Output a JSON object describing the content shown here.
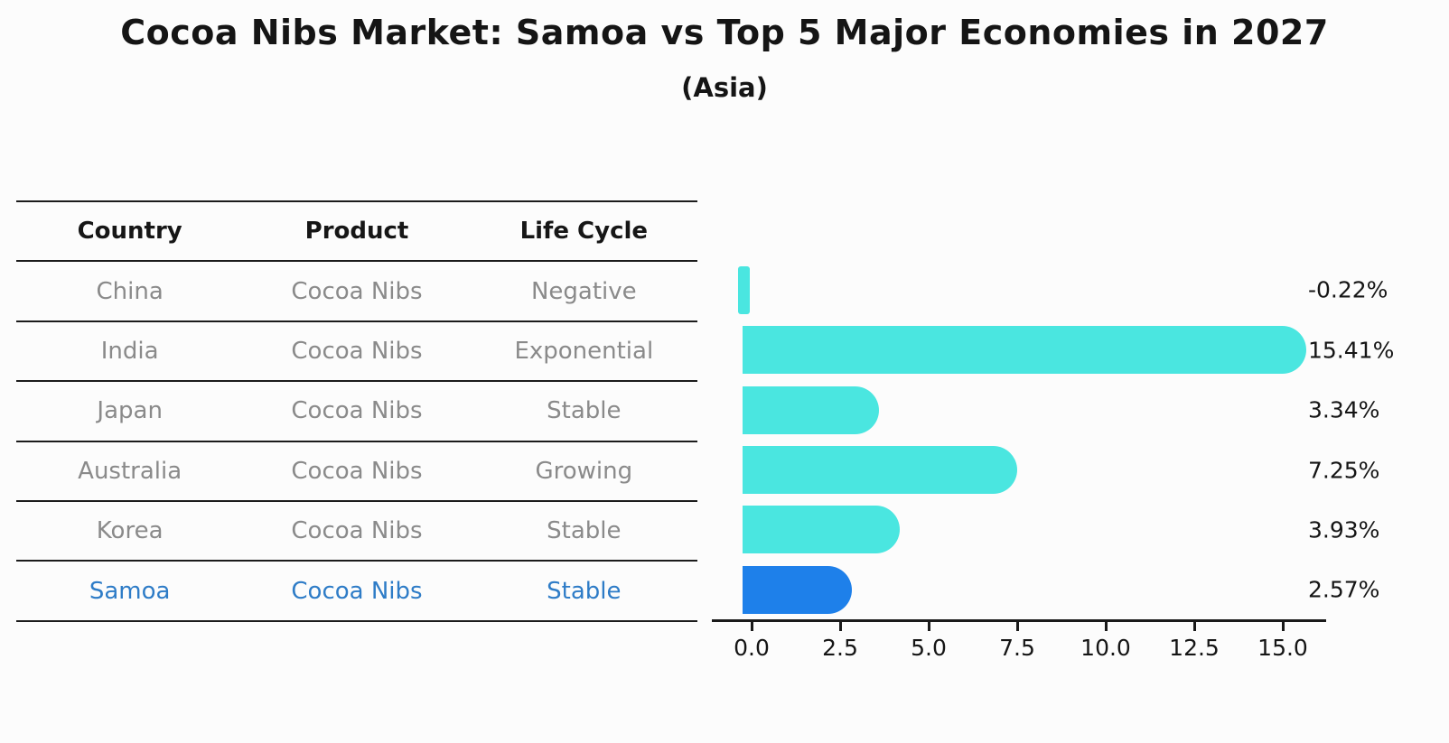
{
  "title": "Cocoa Nibs Market: Samoa vs Top 5 Major Economies in 2027",
  "subtitle": "(Asia)",
  "table": {
    "headers": [
      "Country",
      "Product",
      "Life Cycle"
    ],
    "rows": [
      {
        "country": "China",
        "product": "Cocoa Nibs",
        "life_cycle": "Negative",
        "highlight": false
      },
      {
        "country": "India",
        "product": "Cocoa Nibs",
        "life_cycle": "Exponential",
        "highlight": false
      },
      {
        "country": "Japan",
        "product": "Cocoa Nibs",
        "life_cycle": "Stable",
        "highlight": false
      },
      {
        "country": "Australia",
        "product": "Cocoa Nibs",
        "life_cycle": "Growing",
        "highlight": false
      },
      {
        "country": "Korea",
        "product": "Cocoa Nibs",
        "life_cycle": "Stable",
        "highlight": false
      },
      {
        "country": "Samoa",
        "product": "Cocoa Nibs",
        "life_cycle": "Stable",
        "highlight": true
      }
    ]
  },
  "chart_data": {
    "type": "bar",
    "orientation": "horizontal",
    "categories": [
      "China",
      "India",
      "Japan",
      "Australia",
      "Korea",
      "Samoa"
    ],
    "values": [
      -0.22,
      15.41,
      3.34,
      7.25,
      3.93,
      2.57
    ],
    "value_labels": [
      "-0.22%",
      "15.41%",
      "3.34%",
      "7.25%",
      "3.93%",
      "2.57%"
    ],
    "x_tick_labels": [
      "0.0",
      "2.5",
      "5.0",
      "7.5",
      "10.0",
      "12.5",
      "15.0"
    ],
    "x_tick_values": [
      0,
      2.5,
      5,
      7.5,
      10,
      12.5,
      15
    ],
    "xlim": [
      -1.1,
      16.2
    ],
    "grid": false,
    "legend": false,
    "bar_color": "#4ae6e0",
    "highlight_bar_color": "#1e80ea",
    "highlight_index": 5,
    "highlight_edge_style": "dotted"
  },
  "colors": {
    "background": "#fcfcfc",
    "text_dark": "#151515",
    "text_gray": "#8a8a8a",
    "highlight_text": "#2e7cc7",
    "line": "#1c1c1c"
  }
}
